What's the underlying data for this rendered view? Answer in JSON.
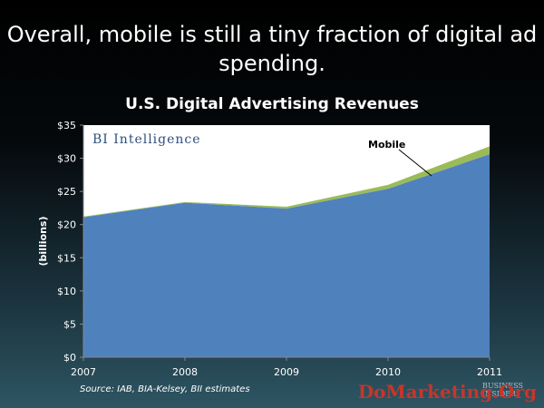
{
  "slide_title": "Overall, mobile is still a tiny fraction of digital ad spending.",
  "source": "Source:  IAB, BIA-Kelsey, BII estimates",
  "brand": "BI Intelligence",
  "watermark": "DoMarketing.Org",
  "logo": "BUSINESS INSIDER",
  "colors": {
    "desktop": "#4f81bd",
    "mobile": "#9bbb59",
    "plot_background": "#ffffff"
  },
  "chart_data": {
    "type": "area",
    "stacked": true,
    "title": "U.S. Digital Advertising Revenues",
    "xlabel": "",
    "ylabel": "(billions)",
    "x": [
      "2007",
      "2008",
      "2009",
      "2010",
      "2011"
    ],
    "ylim": [
      0,
      35
    ],
    "yticks": [
      "$0",
      "$5",
      "$10",
      "$15",
      "$20",
      "$25",
      "$30",
      "$35"
    ],
    "grid": false,
    "series": [
      {
        "values": [
          21.1,
          23.3,
          22.4,
          25.4,
          30.6
        ]
      },
      {
        "name": "Mobile",
        "values": [
          0.1,
          0.1,
          0.3,
          0.6,
          1.2
        ]
      }
    ],
    "annotations": [
      "Mobile"
    ]
  }
}
